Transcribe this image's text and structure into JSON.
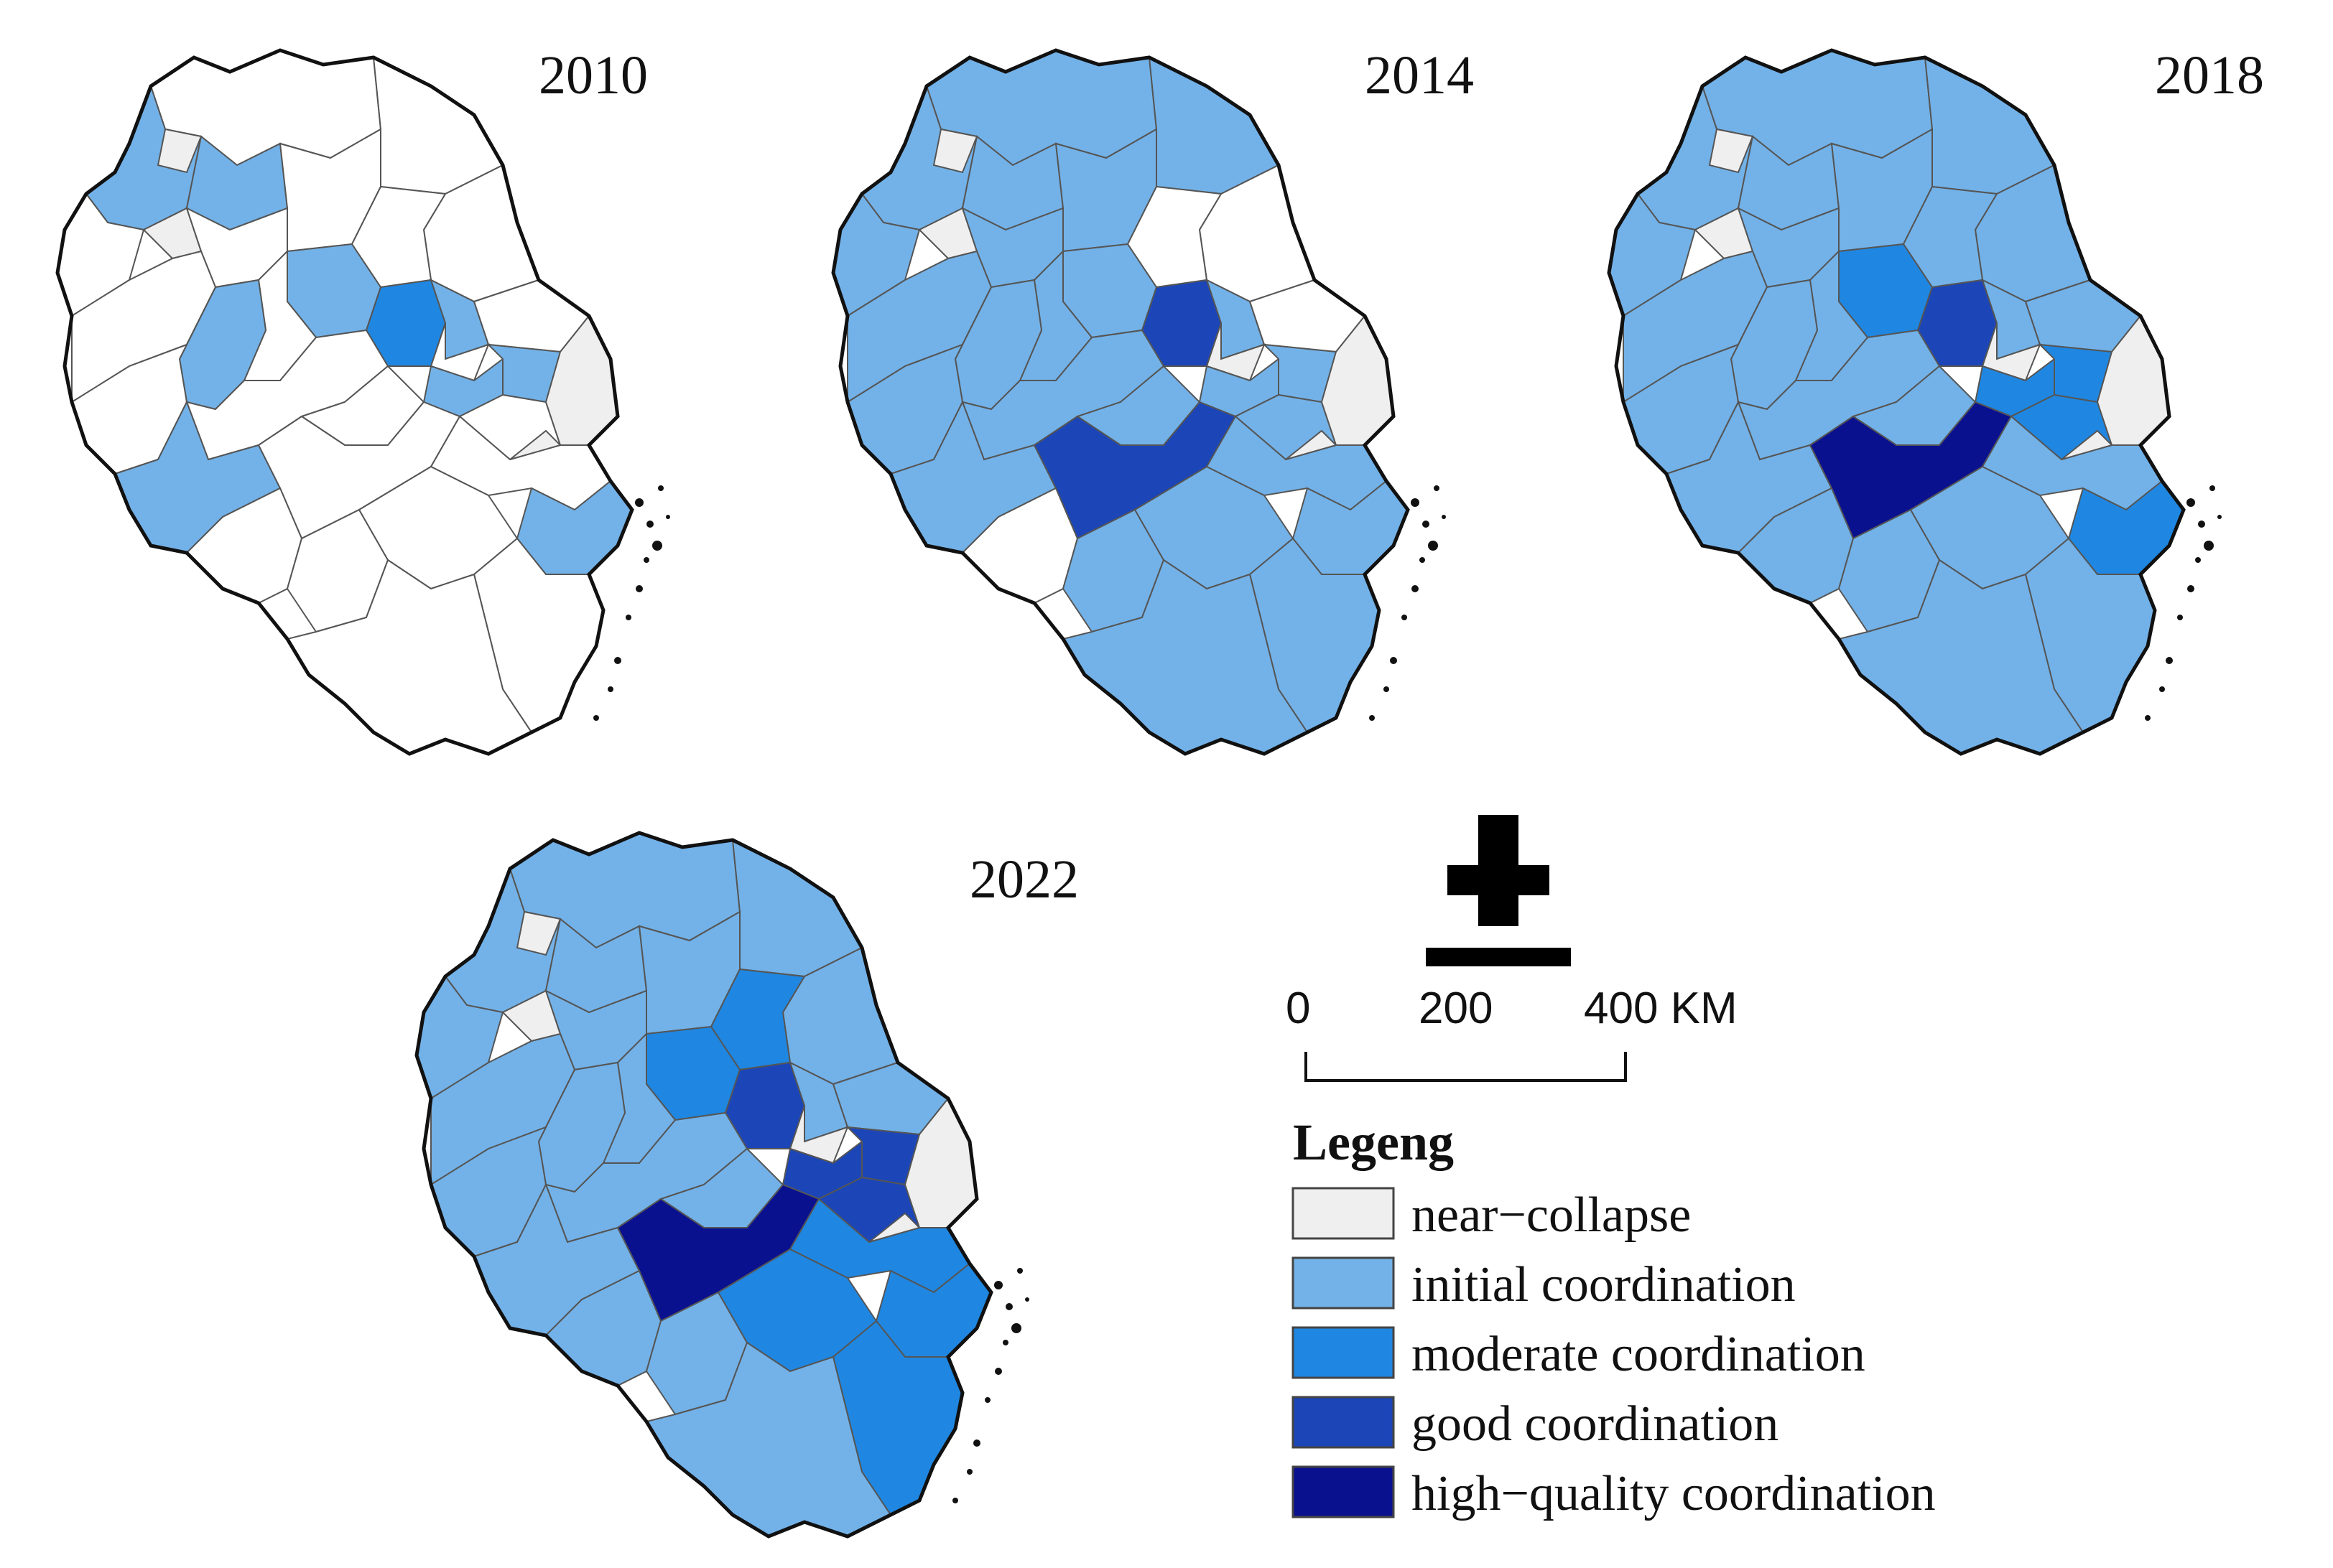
{
  "panels": [
    {
      "year": "2010"
    },
    {
      "year": "2014"
    },
    {
      "year": "2018"
    },
    {
      "year": "2022"
    }
  ],
  "north_arrow": {
    "icon": "north-arrow-icon"
  },
  "scale_bar": {
    "ticks": [
      "0",
      "200",
      "400 KM"
    ]
  },
  "legend": {
    "title": "Legeng",
    "items": [
      {
        "label": "near−collapse",
        "color": "#efefef"
      },
      {
        "label": "initial coordination",
        "color": "#73b2e8"
      },
      {
        "label": "moderate coordination",
        "color": "#1f87e1"
      },
      {
        "label": "good coordination",
        "color": "#1c46b7"
      },
      {
        "label": "high−quality coordination",
        "color": "#0a118f"
      }
    ]
  },
  "colors": {
    "blank": "#ffffff",
    "boundary": "#111111",
    "inner_boundary": "#555555"
  },
  "map_regions": [
    {
      "id": "r1",
      "levels": [
        "blank",
        "initial",
        "initial",
        "initial"
      ]
    },
    {
      "id": "r2",
      "levels": [
        "initial",
        "initial",
        "initial",
        "initial"
      ]
    },
    {
      "id": "r3",
      "levels": [
        "near",
        "near",
        "near",
        "near"
      ]
    },
    {
      "id": "r4",
      "levels": [
        "initial",
        "initial",
        "initial",
        "initial"
      ]
    },
    {
      "id": "r5",
      "levels": [
        "blank",
        "initial",
        "initial",
        "initial"
      ]
    },
    {
      "id": "r6",
      "levels": [
        "blank",
        "initial",
        "initial",
        "initial"
      ]
    },
    {
      "id": "r7",
      "levels": [
        "blank",
        "blank",
        "initial",
        "initial"
      ]
    },
    {
      "id": "r8",
      "levels": [
        "blank",
        "blank",
        "initial",
        "moderate"
      ]
    },
    {
      "id": "r9",
      "levels": [
        "blank",
        "initial",
        "initial",
        "initial"
      ]
    },
    {
      "id": "r10",
      "levels": [
        "near",
        "near",
        "near",
        "near"
      ]
    },
    {
      "id": "r11",
      "levels": [
        "blank",
        "initial",
        "initial",
        "initial"
      ]
    },
    {
      "id": "r12",
      "levels": [
        "initial",
        "initial",
        "moderate",
        "moderate"
      ]
    },
    {
      "id": "r13",
      "levels": [
        "blank",
        "initial",
        "initial",
        "initial"
      ]
    },
    {
      "id": "r14",
      "levels": [
        "near",
        "near",
        "near",
        "near"
      ]
    },
    {
      "id": "r15",
      "levels": [
        "blank",
        "initial",
        "initial",
        "initial"
      ]
    },
    {
      "id": "r16",
      "levels": [
        "initial",
        "initial",
        "initial",
        "initial"
      ]
    },
    {
      "id": "r17",
      "levels": [
        "blank",
        "initial",
        "initial",
        "initial"
      ]
    },
    {
      "id": "r18",
      "levels": [
        "moderate",
        "good",
        "good",
        "good"
      ]
    },
    {
      "id": "r19",
      "levels": [
        "initial",
        "initial",
        "initial",
        "initial"
      ]
    },
    {
      "id": "r20",
      "levels": [
        "blank",
        "blank",
        "initial",
        "initial"
      ]
    },
    {
      "id": "r21",
      "levels": [
        "blank",
        "near",
        "near",
        "near"
      ]
    },
    {
      "id": "r22",
      "levels": [
        "initial",
        "initial",
        "moderate",
        "good"
      ]
    },
    {
      "id": "r23",
      "levels": [
        "initial",
        "initial",
        "moderate",
        "good"
      ]
    },
    {
      "id": "r24",
      "levels": [
        "blank",
        "initial",
        "moderate",
        "good"
      ]
    },
    {
      "id": "r25",
      "levels": [
        "near",
        "near",
        "near",
        "near"
      ]
    },
    {
      "id": "r26",
      "levels": [
        "blank",
        "initial",
        "initial",
        "initial"
      ]
    },
    {
      "id": "r27",
      "levels": [
        "initial",
        "initial",
        "initial",
        "initial"
      ]
    },
    {
      "id": "r28",
      "levels": [
        "blank",
        "initial",
        "initial",
        "initial"
      ]
    },
    {
      "id": "r29",
      "levels": [
        "blank",
        "good",
        "high",
        "high"
      ]
    },
    {
      "id": "r30",
      "levels": [
        "blank",
        "initial",
        "initial",
        "moderate"
      ]
    },
    {
      "id": "r31",
      "levels": [
        "near",
        "near",
        "near",
        "near"
      ]
    },
    {
      "id": "r32",
      "levels": [
        "initial",
        "initial",
        "moderate",
        "moderate"
      ]
    },
    {
      "id": "r33",
      "levels": [
        "blank",
        "blank",
        "initial",
        "initial"
      ]
    },
    {
      "id": "r34",
      "levels": [
        "blank",
        "initial",
        "initial",
        "initial"
      ]
    },
    {
      "id": "r35",
      "levels": [
        "blank",
        "initial",
        "initial",
        "moderate"
      ]
    },
    {
      "id": "r36",
      "levels": [
        "blank",
        "initial",
        "initial",
        "moderate"
      ]
    },
    {
      "id": "r37",
      "levels": [
        "blank",
        "initial",
        "initial",
        "initial"
      ]
    }
  ]
}
